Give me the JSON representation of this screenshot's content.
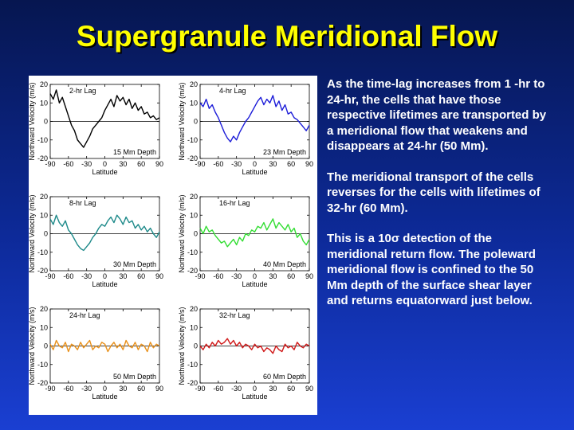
{
  "title": "Supergranule Meridional Flow",
  "paragraphs": [
    "As the time-lag increases from 1 -hr to 24-hr, the cells that have those respective lifetimes are transported by a meridional flow that weakens and disappears at 24-hr (50 Mm).",
    "The meridional transport of the cells reverses for the cells with lifetimes of 32-hr (60 Mm).",
    "This is a 10σ detection of the meridional return flow. The poleward meridional flow is confined to the 50 Mm depth of the surface shear layer and returns equatorward just below."
  ],
  "chart_data": [
    {
      "type": "line",
      "lag": "2-hr Lag",
      "depth": "15 Mm Depth",
      "x_label": "Latitude",
      "y_label": "Northward Velocity (m/s)",
      "xlim": [
        -90,
        90
      ],
      "xticks": [
        -90,
        -60,
        -30,
        0,
        30,
        60,
        90
      ],
      "ylim": [
        -20,
        20
      ],
      "yticks": [
        -20,
        -10,
        0,
        10,
        20
      ],
      "zero_line": true,
      "x": [
        -90,
        -85,
        -80,
        -75,
        -70,
        -65,
        -60,
        -55,
        -50,
        -45,
        -40,
        -35,
        -30,
        -25,
        -20,
        -15,
        -10,
        -5,
        0,
        5,
        10,
        15,
        20,
        25,
        30,
        35,
        40,
        45,
        50,
        55,
        60,
        65,
        70,
        75,
        80,
        85,
        90
      ],
      "series": [
        {
          "color": "#000000",
          "values": [
            15,
            12,
            17,
            10,
            13,
            8,
            3,
            -2,
            -5,
            -10,
            -12,
            -14,
            -11,
            -8,
            -4,
            -2,
            0,
            2,
            6,
            9,
            12,
            8,
            14,
            11,
            13,
            9,
            12,
            7,
            10,
            6,
            8,
            4,
            5,
            2,
            3,
            1,
            2
          ]
        }
      ]
    },
    {
      "type": "line",
      "lag": "4-hr Lag",
      "depth": "23 Mm Depth",
      "x_label": "Latitude",
      "y_label": "Northward Velocity (m/s)",
      "xlim": [
        -90,
        90
      ],
      "xticks": [
        -90,
        -60,
        -30,
        0,
        30,
        60,
        90
      ],
      "ylim": [
        -20,
        20
      ],
      "yticks": [
        -20,
        -10,
        0,
        10,
        20
      ],
      "zero_line": true,
      "x": [
        -90,
        -85,
        -80,
        -75,
        -70,
        -65,
        -60,
        -55,
        -50,
        -45,
        -40,
        -35,
        -30,
        -25,
        -20,
        -15,
        -10,
        -5,
        0,
        5,
        10,
        15,
        20,
        25,
        30,
        35,
        40,
        45,
        50,
        55,
        60,
        65,
        70,
        75,
        80,
        85,
        90
      ],
      "series": [
        {
          "color": "#1c1cd8",
          "values": [
            10,
            8,
            12,
            7,
            9,
            5,
            2,
            -2,
            -6,
            -9,
            -11,
            -8,
            -10,
            -6,
            -3,
            0,
            2,
            5,
            8,
            11,
            13,
            9,
            12,
            10,
            14,
            8,
            11,
            6,
            9,
            4,
            5,
            2,
            1,
            -1,
            -3,
            -5,
            -2
          ]
        }
      ]
    },
    {
      "type": "line",
      "lag": "8-hr Lag",
      "depth": "30 Mm Depth",
      "x_label": "Latitude",
      "y_label": "Northward Velocity (m/s)",
      "xlim": [
        -90,
        90
      ],
      "xticks": [
        -90,
        -60,
        -30,
        0,
        30,
        60,
        90
      ],
      "ylim": [
        -20,
        20
      ],
      "yticks": [
        -20,
        -10,
        0,
        10,
        20
      ],
      "zero_line": true,
      "x": [
        -90,
        -85,
        -80,
        -75,
        -70,
        -65,
        -60,
        -55,
        -50,
        -45,
        -40,
        -35,
        -30,
        -25,
        -20,
        -15,
        -10,
        -5,
        0,
        5,
        10,
        15,
        20,
        25,
        30,
        35,
        40,
        45,
        50,
        55,
        60,
        65,
        70,
        75,
        80,
        85,
        90
      ],
      "series": [
        {
          "color": "#1e8a8a",
          "values": [
            8,
            5,
            10,
            6,
            4,
            7,
            2,
            0,
            -3,
            -6,
            -8,
            -9,
            -7,
            -5,
            -2,
            0,
            3,
            5,
            4,
            7,
            9,
            6,
            10,
            8,
            5,
            9,
            6,
            7,
            3,
            5,
            2,
            4,
            1,
            3,
            0,
            -2,
            1
          ]
        }
      ]
    },
    {
      "type": "line",
      "lag": "16-hr Lag",
      "depth": "40 Mm Depth",
      "x_label": "Latitude",
      "y_label": "Northward Velocity (m/s)",
      "xlim": [
        -90,
        90
      ],
      "xticks": [
        -90,
        -60,
        -30,
        0,
        30,
        60,
        90
      ],
      "ylim": [
        -20,
        20
      ],
      "yticks": [
        -20,
        -10,
        0,
        10,
        20
      ],
      "zero_line": true,
      "x": [
        -90,
        -85,
        -80,
        -75,
        -70,
        -65,
        -60,
        -55,
        -50,
        -45,
        -40,
        -35,
        -30,
        -25,
        -20,
        -15,
        -10,
        -5,
        0,
        5,
        10,
        15,
        20,
        25,
        30,
        35,
        40,
        45,
        50,
        55,
        60,
        65,
        70,
        75,
        80,
        85,
        90
      ],
      "series": [
        {
          "color": "#33dd33",
          "values": [
            3,
            0,
            4,
            1,
            2,
            -1,
            -3,
            -5,
            -4,
            -7,
            -5,
            -3,
            -6,
            -2,
            -4,
            0,
            -1,
            2,
            1,
            4,
            3,
            6,
            2,
            5,
            8,
            3,
            6,
            4,
            2,
            5,
            1,
            3,
            -2,
            0,
            -4,
            -6,
            -3
          ]
        }
      ]
    },
    {
      "type": "line",
      "lag": "24-hr Lag",
      "depth": "50 Mm Depth",
      "x_label": "Latitude",
      "y_label": "Northward Velocity (m/s)",
      "xlim": [
        -90,
        90
      ],
      "xticks": [
        -90,
        -60,
        -30,
        0,
        30,
        60,
        90
      ],
      "ylim": [
        -20,
        20
      ],
      "yticks": [
        -20,
        -10,
        0,
        10,
        20
      ],
      "zero_line": true,
      "x": [
        -90,
        -85,
        -80,
        -75,
        -70,
        -65,
        -60,
        -55,
        -50,
        -45,
        -40,
        -35,
        -30,
        -25,
        -20,
        -15,
        -10,
        -5,
        0,
        5,
        10,
        15,
        20,
        25,
        30,
        35,
        40,
        45,
        50,
        55,
        60,
        65,
        70,
        75,
        80,
        85,
        90
      ],
      "series": [
        {
          "color": "#e8901a",
          "values": [
            1,
            -2,
            3,
            0,
            -1,
            2,
            -3,
            1,
            0,
            -2,
            2,
            -1,
            1,
            3,
            -2,
            0,
            -1,
            2,
            1,
            -3,
            0,
            2,
            -1,
            1,
            -2,
            3,
            0,
            -1,
            2,
            -2,
            1,
            0,
            -3,
            2,
            -1,
            1,
            0
          ]
        }
      ]
    },
    {
      "type": "line",
      "lag": "32-hr Lag",
      "depth": "60 Mm Depth",
      "x_label": "Latitude",
      "y_label": "Northward Velocity (m/s)",
      "xlim": [
        -90,
        90
      ],
      "xticks": [
        -90,
        -60,
        -30,
        0,
        30,
        60,
        90
      ],
      "ylim": [
        -20,
        20
      ],
      "yticks": [
        -20,
        -10,
        0,
        10,
        20
      ],
      "zero_line": true,
      "x": [
        -90,
        -85,
        -80,
        -75,
        -70,
        -65,
        -60,
        -55,
        -50,
        -45,
        -40,
        -35,
        -30,
        -25,
        -20,
        -15,
        -10,
        -5,
        0,
        5,
        10,
        15,
        20,
        25,
        30,
        35,
        40,
        45,
        50,
        55,
        60,
        65,
        70,
        75,
        80,
        85,
        90
      ],
      "series": [
        {
          "color": "#d01818",
          "values": [
            0,
            -2,
            1,
            -1,
            2,
            0,
            3,
            1,
            2,
            4,
            1,
            3,
            0,
            2,
            -1,
            1,
            0,
            -2,
            1,
            -1,
            0,
            -3,
            -1,
            -2,
            -4,
            0,
            -2,
            -3,
            1,
            -1,
            0,
            -2,
            2,
            0,
            -1,
            1,
            0
          ]
        }
      ]
    }
  ]
}
